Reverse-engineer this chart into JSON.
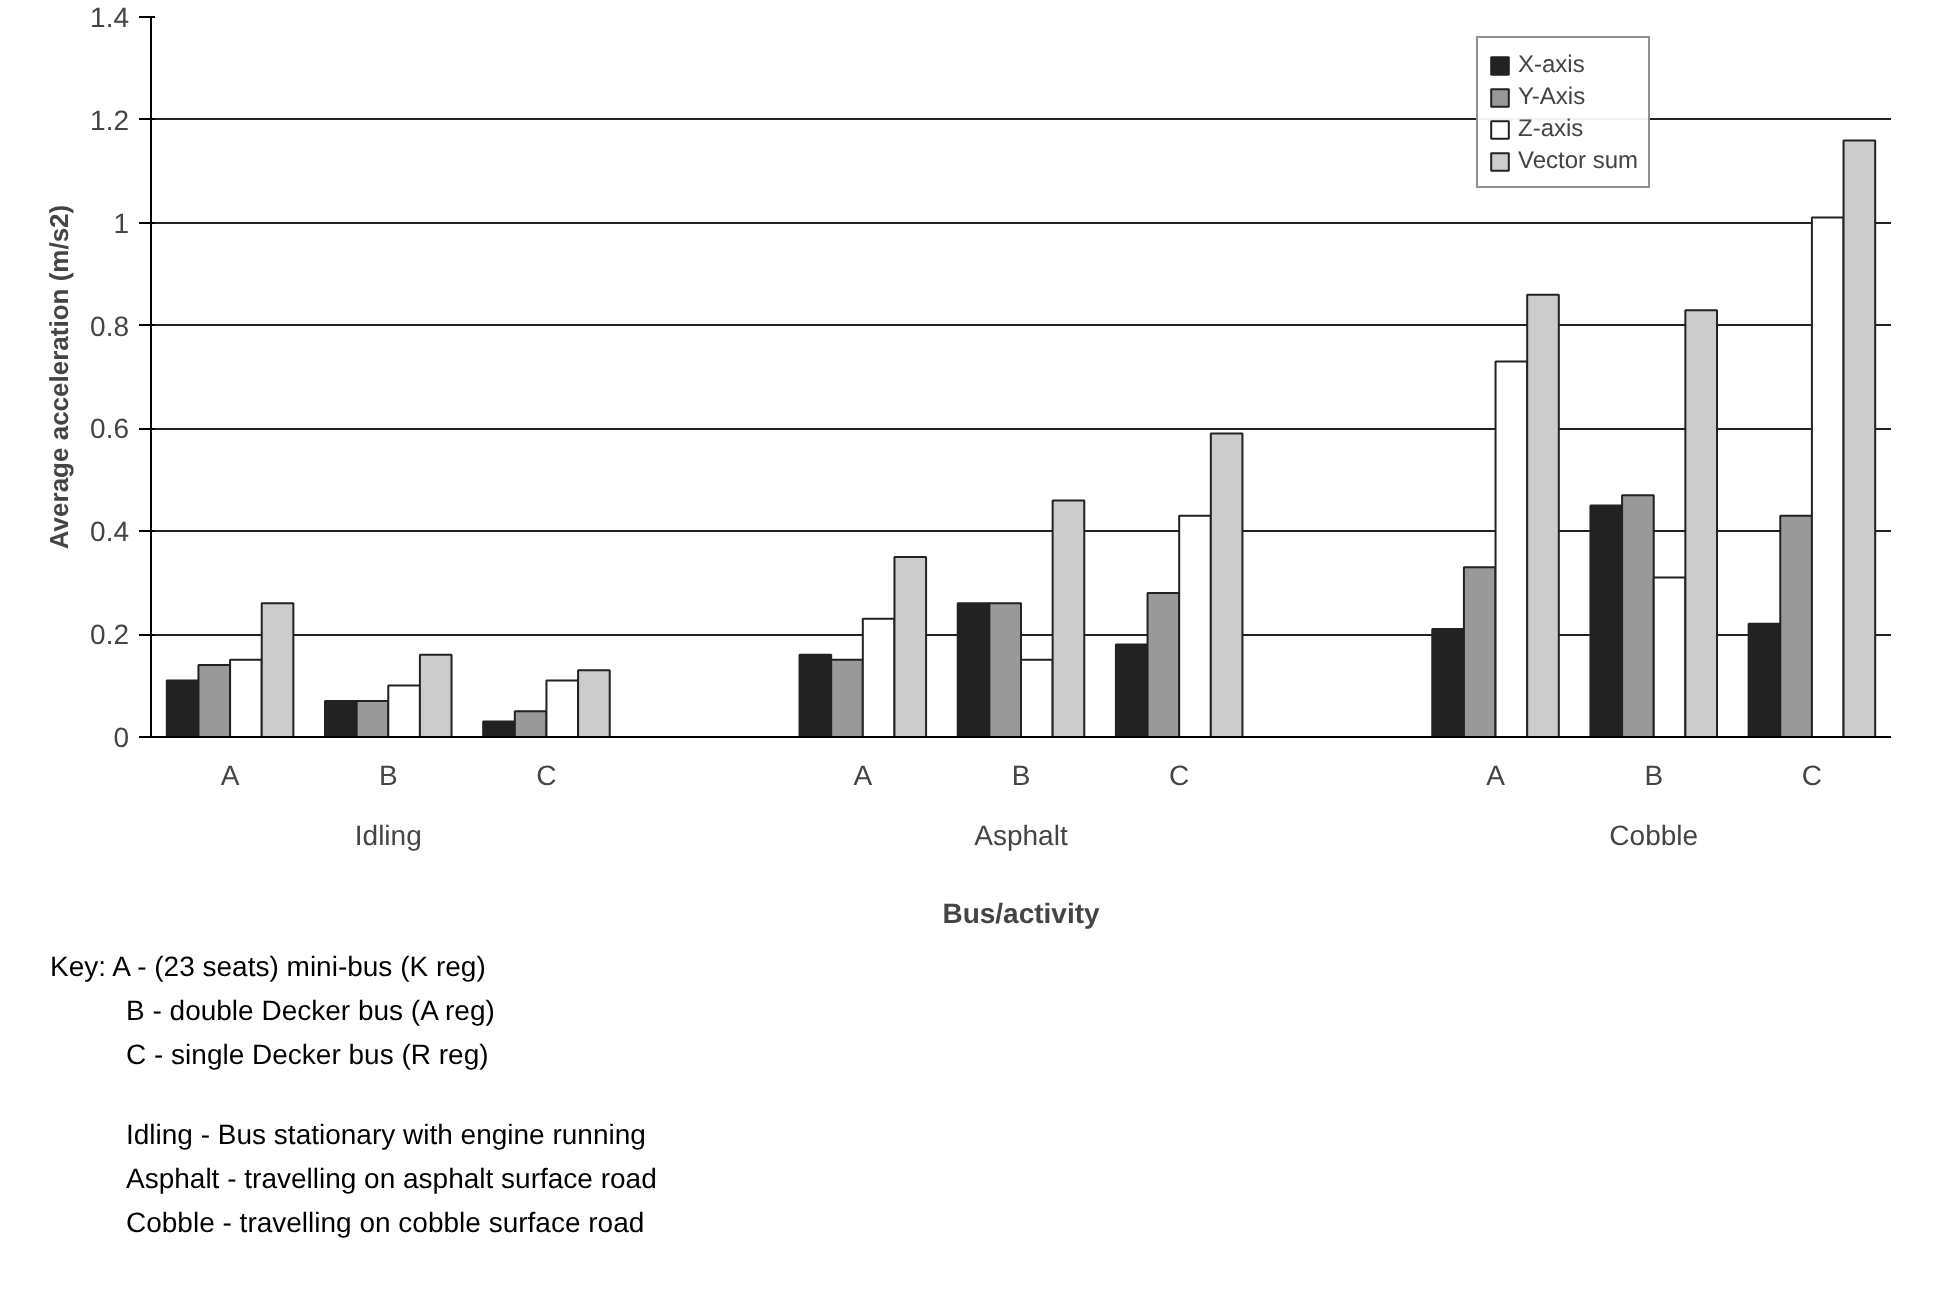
{
  "chart_data": {
    "type": "bar",
    "xlabel": "Bus/activity",
    "ylabel": "Average acceleration (m/s2)",
    "categories": [
      "A",
      "B",
      "C",
      null,
      "A",
      "B",
      "C",
      null,
      "A",
      "B",
      "C"
    ],
    "series": [
      {
        "name": "X-axis",
        "color": "#222222",
        "values": [
          0.11,
          0.07,
          0.03,
          null,
          0.16,
          0.26,
          0.18,
          null,
          0.21,
          0.45,
          0.22
        ]
      },
      {
        "name": "Y-Axis",
        "color": "#999999",
        "values": [
          0.14,
          0.07,
          0.05,
          null,
          0.15,
          0.26,
          0.28,
          null,
          0.33,
          0.47,
          0.43
        ]
      },
      {
        "name": "Z-axis",
        "color": "#ffffff",
        "values": [
          0.15,
          0.1,
          0.11,
          null,
          0.23,
          0.15,
          0.43,
          null,
          0.73,
          0.31,
          1.01
        ]
      },
      {
        "name": "Vector sum",
        "color": "#cccccc",
        "values": [
          0.26,
          0.16,
          0.13,
          null,
          0.35,
          0.46,
          0.59,
          null,
          0.86,
          0.83,
          1.16
        ]
      }
    ],
    "ylim": [
      0,
      1.4
    ],
    "yticks": [
      0,
      0.2,
      0.4,
      0.6,
      0.8,
      1,
      1.2,
      1.4
    ],
    "grid": "y",
    "legend": "top right",
    "annotations": [
      "Idling",
      "Asphalt",
      "Cobble",
      "Key:  A - (23 seats) mini-bus (K reg)",
      "B - double Decker bus (A reg)",
      "C - single Decker bus (R reg)",
      "Idling - Bus stationary with engine running",
      "Asphalt - travelling on asphalt surface road",
      "Cobble - travelling on cobble surface road"
    ]
  }
}
